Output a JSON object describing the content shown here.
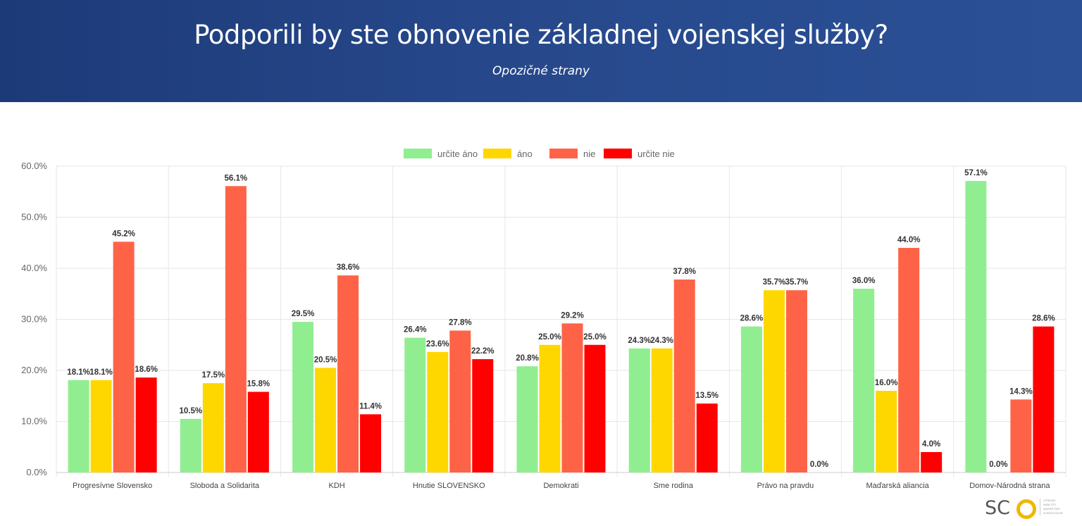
{
  "header": {
    "title": "Podporili by ste obnovenie základnej vojenskej služby?",
    "subtitle": "Opozičné strany"
  },
  "chart_data": {
    "type": "bar",
    "title": "Podporili by ste obnovenie základnej vojenskej služby?",
    "subtitle": "Opozičné strany",
    "categories": [
      "Progresívne Slovensko",
      "Sloboda a Solidarita",
      "KDH",
      "Hnutie SLOVENSKO",
      "Demokrati",
      "Sme rodina",
      "Právo na pravdu",
      "Maďarská aliancia",
      "Domov-Národná strana"
    ],
    "series": [
      {
        "name": "určite áno",
        "color": "#90EE90",
        "values": [
          18.1,
          10.5,
          29.5,
          26.4,
          20.8,
          24.3,
          28.6,
          36.0,
          57.1
        ]
      },
      {
        "name": "áno",
        "color": "#FFD700",
        "values": [
          18.1,
          17.5,
          20.5,
          23.6,
          25.0,
          24.3,
          35.7,
          16.0,
          0.0
        ]
      },
      {
        "name": "nie",
        "color": "#FF6347",
        "values": [
          45.2,
          56.1,
          38.6,
          27.8,
          29.2,
          37.8,
          35.7,
          44.0,
          14.3
        ]
      },
      {
        "name": "určite nie",
        "color": "#FF0000",
        "values": [
          18.6,
          15.8,
          11.4,
          22.2,
          25.0,
          13.5,
          0.0,
          4.0,
          28.6
        ]
      }
    ],
    "yticks": [
      "0.0%",
      "10.0%",
      "20.0%",
      "30.0%",
      "40.0%",
      "50.0%",
      "60.0%"
    ],
    "ylim": [
      0,
      60
    ],
    "xlabel": "",
    "ylabel": "",
    "grid": true,
    "legend": "top-center",
    "data_labels": true
  },
  "logo": {
    "text": "SCO",
    "tagline": "VÝSKUM ANALÝZY MARKETING KONZULTÁCIE"
  }
}
